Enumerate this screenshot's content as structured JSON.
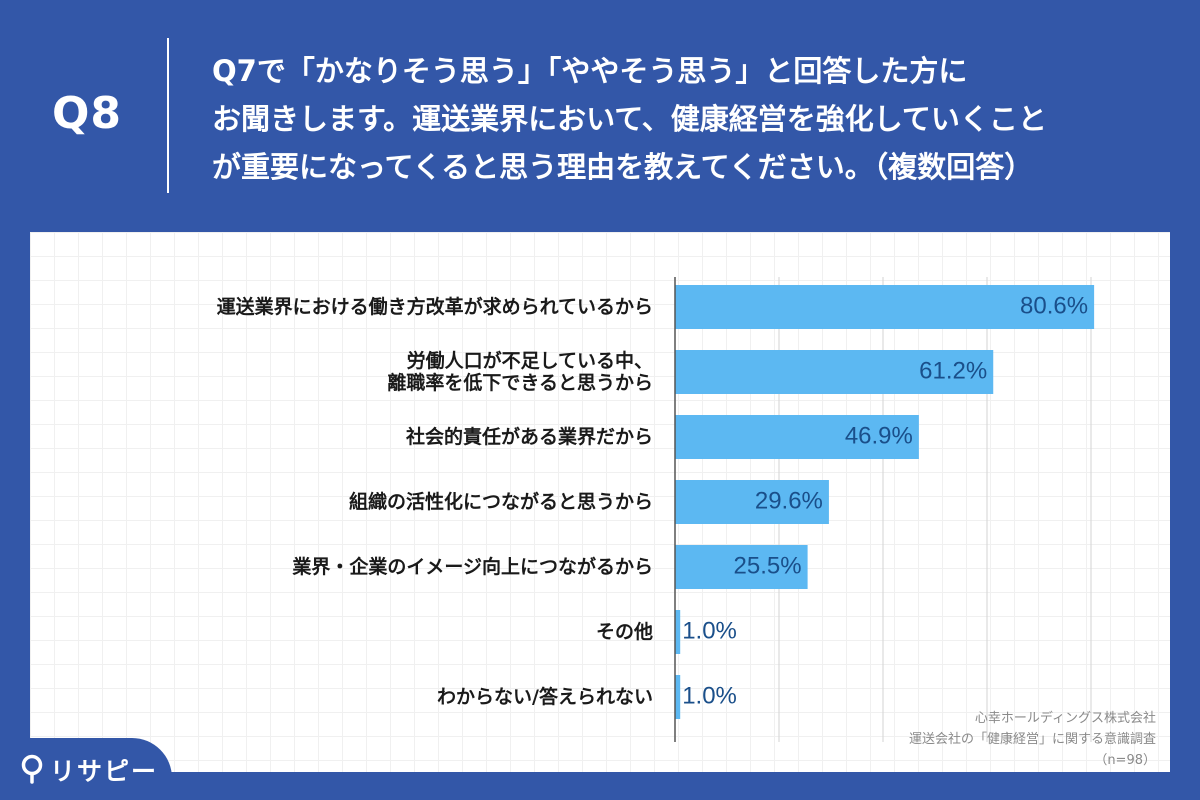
{
  "header": {
    "question_number": "Q8",
    "question_lines": [
      "Q7で「かなりそう思う」「ややそう思う」と回答した方に",
      "お聞きします。運送業界において、健康経営を強化していくこと",
      "が重要になってくると思う理由を教えてください。（複数回答）"
    ]
  },
  "chart_data": {
    "type": "bar",
    "orientation": "horizontal",
    "unit": "%",
    "categories": [
      "運送業界における働き方改革が求められているから",
      "労働人口が不足している中、\n離職率を低下できると思うから",
      "社会的責任がある業界だから",
      "組織の活性化につながると思うから",
      "業界・企業のイメージ向上につながるから",
      "その他",
      "わからない/答えられない"
    ],
    "values": [
      80.6,
      61.2,
      46.9,
      29.6,
      25.5,
      1.0,
      1.0
    ],
    "data_labels": [
      "80.6%",
      "61.2%",
      "46.9%",
      "29.6%",
      "25.5%",
      "1.0%",
      "1.0%"
    ],
    "xlim": [
      0,
      100
    ],
    "grid": true,
    "bar_color": "#5cb8f2",
    "label_color": "#1a4f8a"
  },
  "source": {
    "lines": [
      "心幸ホールディングス株式会社",
      "運送会社の「健康経営」に関する意識調査",
      "（n=98）"
    ]
  },
  "logo": {
    "text": "リサピー"
  },
  "colors": {
    "background": "#3357a8",
    "panel": "#ffffff",
    "bar": "#5cb8f2"
  }
}
